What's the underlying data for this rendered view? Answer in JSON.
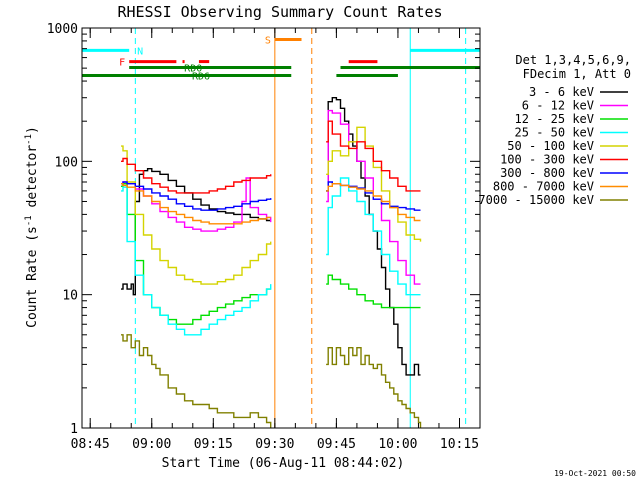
{
  "chart_data": {
    "type": "line",
    "title": "RHESSI Observing Summary Count Rates",
    "xlabel": "Start Time (06-Aug-11 08:44:02)",
    "ylabel_parts": [
      "Count Rate (s",
      "-1",
      " detector",
      "-1",
      ")"
    ],
    "yscale": "log",
    "ylim": [
      1,
      1000
    ],
    "y_ticks": [
      {
        "value": 1,
        "label": "1"
      },
      {
        "value": 10,
        "label": "10"
      },
      {
        "value": 100,
        "label": "100"
      },
      {
        "value": 1000,
        "label": "1000"
      }
    ],
    "x_range_min": [
      -1,
      96
    ],
    "x_ticks": [
      {
        "value": 1,
        "label": "08:45"
      },
      {
        "value": 16,
        "label": "09:00"
      },
      {
        "value": 31,
        "label": "09:15"
      },
      {
        "value": 46,
        "label": "09:30"
      },
      {
        "value": 61,
        "label": "09:45"
      },
      {
        "value": 76,
        "label": "10:00"
      },
      {
        "value": 91,
        "label": "10:15"
      }
    ],
    "legend_header": [
      "Det 1,3,4,5,6,9,",
      "FDecim 1, Att 0"
    ],
    "footer_date": "19-Oct-2021 00:50",
    "series": [
      {
        "name": "3 - 6 keV",
        "color": "#000000",
        "segments": [
          {
            "x": [
              8.5,
              9,
              10,
              11,
              11.5,
              12,
              13,
              14,
              15,
              16,
              18,
              20,
              22,
              24,
              26,
              28,
              30,
              32,
              34,
              36,
              38,
              40,
              42,
              44,
              45
            ],
            "y": [
              11,
              12,
              11,
              12,
              10,
              50,
              80,
              85,
              88,
              84,
              80,
              72,
              65,
              58,
              52,
              47,
              44,
              42,
              41,
              40,
              40,
              38,
              37,
              36,
              36
            ]
          },
          {
            "x": [
              58.5,
              59,
              60,
              61,
              62,
              63,
              64,
              65,
              66,
              67,
              68,
              69,
              70,
              71,
              72,
              73,
              74,
              75,
              76,
              77,
              78,
              79,
              80,
              81,
              81.5
            ],
            "y": [
              60,
              280,
              300,
              290,
              250,
              200,
              160,
              130,
              100,
              75,
              55,
              40,
              30,
              22,
              16,
              11,
              8,
              6,
              4,
              3,
              2.5,
              2.5,
              3,
              2.5,
              2.5
            ]
          }
        ]
      },
      {
        "name": "6 - 12 keV",
        "color": "#ff00ff",
        "segments": [
          {
            "x": [
              8.5,
              9,
              10,
              12,
              14,
              16,
              18,
              20,
              22,
              24,
              26,
              28,
              30,
              32,
              34,
              36,
              38,
              39,
              40,
              42,
              44,
              45
            ],
            "y": [
              65,
              70,
              68,
              62,
              55,
              48,
              42,
              38,
              35,
              32,
              31,
              30,
              30,
              31,
              32,
              35,
              50,
              75,
              45,
              40,
              38,
              35
            ]
          },
          {
            "x": [
              58.5,
              59,
              60,
              62,
              64,
              66,
              68,
              70,
              72,
              74,
              76,
              78,
              80,
              81.5
            ],
            "y": [
              50,
              240,
              230,
              190,
              140,
              100,
              75,
              52,
              36,
              25,
              18,
              14,
              12,
              12
            ]
          }
        ]
      },
      {
        "name": "12 - 25 keV",
        "color": "#00e000",
        "segments": [
          {
            "x": [
              8.5,
              9,
              10,
              12,
              14,
              16,
              18,
              20,
              22,
              24,
              26,
              28,
              30,
              32,
              34,
              36,
              38,
              40,
              42,
              44,
              45
            ],
            "y": [
              65,
              68,
              40,
              18,
              10,
              8,
              7,
              6.5,
              6,
              6,
              6.5,
              7,
              7.5,
              8,
              8.5,
              9,
              9.5,
              10,
              10,
              11,
              11
            ]
          },
          {
            "x": [
              58.5,
              59,
              60,
              62,
              64,
              66,
              68,
              70,
              72,
              74,
              76,
              78,
              80,
              81.5
            ],
            "y": [
              12,
              14,
              13,
              12,
              11,
              10,
              9,
              8.5,
              8,
              8,
              8,
              8,
              8,
              8
            ]
          }
        ]
      },
      {
        "name": "25 - 50 keV",
        "color": "#00ffff",
        "segments": [
          {
            "x": [
              8.5,
              9,
              10,
              12,
              14,
              16,
              18,
              20,
              22,
              24,
              26,
              28,
              30,
              32,
              34,
              36,
              38,
              40,
              42,
              44,
              45
            ],
            "y": [
              60,
              64,
              25,
              14,
              10,
              8,
              7,
              6,
              5.5,
              5,
              5,
              5.5,
              6,
              6.5,
              7,
              7.5,
              8,
              9,
              10,
              11,
              12
            ]
          },
          {
            "x": [
              58.5,
              59,
              60,
              62,
              64,
              66,
              68,
              70,
              72,
              74,
              76,
              78,
              80,
              81.5
            ],
            "y": [
              20,
              45,
              55,
              75,
              60,
              50,
              40,
              30,
              20,
              15,
              12,
              10,
              10,
              10
            ]
          }
        ]
      },
      {
        "name": "50 - 100 keV",
        "color": "#d4d400",
        "segments": [
          {
            "x": [
              8.5,
              9,
              10,
              12,
              14,
              16,
              18,
              20,
              22,
              24,
              26,
              28,
              30,
              32,
              34,
              36,
              38,
              40,
              42,
              44,
              45
            ],
            "y": [
              130,
              120,
              70,
              40,
              28,
              22,
              18,
              16,
              14,
              13,
              12.5,
              12,
              12,
              12.5,
              13,
              14,
              16,
              18,
              20,
              24,
              25
            ]
          },
          {
            "x": [
              58.5,
              59,
              60,
              62,
              64,
              66,
              68,
              70,
              72,
              74,
              76,
              78,
              80,
              81.5
            ],
            "y": [
              80,
              100,
              120,
              110,
              140,
              180,
              130,
              90,
              60,
              45,
              35,
              28,
              26,
              25
            ]
          }
        ]
      },
      {
        "name": "100 - 300 keV",
        "color": "#ff0000",
        "segments": [
          {
            "x": [
              8.5,
              9,
              10,
              12,
              14,
              16,
              18,
              20,
              22,
              24,
              26,
              28,
              30,
              32,
              34,
              36,
              38,
              40,
              42,
              44,
              45
            ],
            "y": [
              100,
              105,
              95,
              85,
              75,
              68,
              64,
              60,
              58,
              58,
              58,
              58,
              60,
              62,
              65,
              70,
              72,
              75,
              75,
              78,
              80
            ]
          },
          {
            "x": [
              58.5,
              59,
              60,
              62,
              64,
              66,
              68,
              70,
              72,
              74,
              76,
              78,
              80,
              81.5
            ],
            "y": [
              140,
              200,
              160,
              130,
              125,
              140,
              125,
              100,
              85,
              75,
              65,
              60,
              60,
              60
            ]
          }
        ]
      },
      {
        "name": "300 - 800 keV",
        "color": "#0000ff",
        "segments": [
          {
            "x": [
              8.5,
              9,
              10,
              12,
              14,
              16,
              18,
              20,
              22,
              24,
              26,
              28,
              30,
              32,
              34,
              36,
              38,
              40,
              42,
              44,
              45
            ],
            "y": [
              68,
              70,
              68,
              65,
              62,
              58,
              55,
              52,
              48,
              46,
              44,
              43,
              43,
              44,
              45,
              46,
              48,
              50,
              51,
              52,
              53
            ]
          },
          {
            "x": [
              58.5,
              59,
              60,
              62,
              64,
              66,
              68,
              70,
              72,
              74,
              76,
              78,
              80,
              81.5
            ],
            "y": [
              60,
              70,
              68,
              66,
              65,
              63,
              58,
              52,
              48,
              46,
              45,
              44,
              43,
              43
            ]
          }
        ]
      },
      {
        "name": "800 - 7000 keV",
        "color": "#ff8c00",
        "segments": [
          {
            "x": [
              8.5,
              9,
              10,
              12,
              14,
              16,
              18,
              20,
              22,
              24,
              26,
              28,
              30,
              32,
              34,
              36,
              38,
              40,
              42,
              44,
              45
            ],
            "y": [
              68,
              66,
              64,
              60,
              55,
              50,
              45,
              42,
              40,
              38,
              36,
              35,
              34,
              34,
              34,
              34,
              35,
              36,
              37,
              38,
              38
            ]
          },
          {
            "x": [
              58.5,
              59,
              60,
              62,
              64,
              66,
              68,
              70,
              72,
              74,
              76,
              78,
              80,
              81.5
            ],
            "y": [
              60,
              65,
              68,
              66,
              64,
              62,
              60,
              55,
              50,
              45,
              40,
              38,
              36,
              36
            ]
          }
        ]
      },
      {
        "name": "7000 - 15000 keV",
        "color": "#808000",
        "segments": [
          {
            "x": [
              8.5,
              9,
              10,
              11,
              12,
              13,
              14,
              15,
              16,
              17,
              18,
              20,
              22,
              24,
              26,
              28,
              30,
              32,
              34,
              36,
              38,
              40,
              42,
              44,
              45
            ],
            "y": [
              5,
              4.5,
              5,
              4,
              4.5,
              3.5,
              4,
              3.5,
              3,
              2.8,
              2.5,
              2,
              1.8,
              1.6,
              1.5,
              1.5,
              1.4,
              1.3,
              1.3,
              1.2,
              1.2,
              1.3,
              1.2,
              1.1,
              1
            ]
          },
          {
            "x": [
              58.5,
              59,
              60,
              61,
              62,
              63,
              64,
              65,
              66,
              67,
              68,
              69,
              70,
              71,
              72,
              73,
              74,
              75,
              76,
              77,
              78,
              79,
              80,
              81,
              81.5
            ],
            "y": [
              3,
              4,
              3,
              4,
              3.5,
              3,
              4,
              3.5,
              4,
              3,
              3.5,
              3,
              2.8,
              3,
              2.5,
              2.2,
              2,
              1.8,
              1.6,
              1.5,
              1.4,
              1.3,
              1.2,
              1.1,
              1
            ]
          }
        ]
      }
    ],
    "flags": [
      {
        "label": "N",
        "color": "#00ffff",
        "y_value": 680,
        "segments": [
          [
            -1,
            10.5
          ],
          [
            79,
            96
          ]
        ]
      },
      {
        "label": "F",
        "color": "#ff0000",
        "y_value": 560,
        "segments": [
          [
            10.5,
            22
          ],
          [
            23.5,
            24
          ],
          [
            27.5,
            30
          ],
          [
            64,
            71
          ]
        ]
      },
      {
        "label": "RD0",
        "color": "#008000",
        "y_value": 505,
        "segments": [
          [
            10.5,
            50
          ],
          [
            62,
            96
          ]
        ]
      },
      {
        "label": "RD6",
        "color": "#008000",
        "y_value": 440,
        "segments": [
          [
            -1,
            50
          ],
          [
            61,
            76
          ]
        ]
      },
      {
        "label": "S",
        "color": "#ff8000",
        "y_value": 820,
        "segments": [
          [
            46,
            52.5
          ]
        ]
      }
    ],
    "vertical_lines": [
      {
        "x": 12,
        "color": "#00ffff",
        "style": "dashed"
      },
      {
        "x": 55,
        "color": "#ff8000",
        "style": "dashed"
      },
      {
        "x": 92.5,
        "color": "#00ffff",
        "style": "dashed"
      },
      {
        "x": 46,
        "color": "#ff8000",
        "style": "solid"
      },
      {
        "x": 79,
        "color": "#00ffff",
        "style": "solid"
      }
    ]
  }
}
